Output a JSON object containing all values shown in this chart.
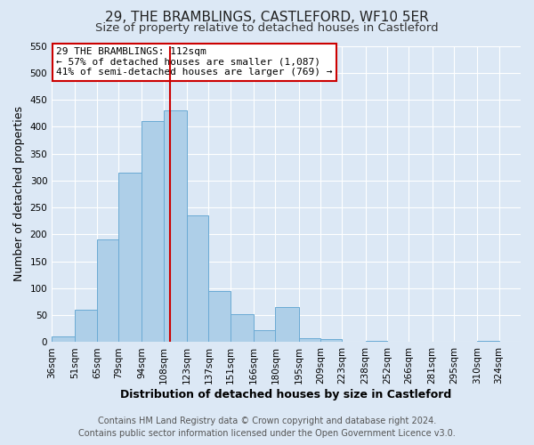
{
  "title": "29, THE BRAMBLINGS, CASTLEFORD, WF10 5ER",
  "subtitle": "Size of property relative to detached houses in Castleford",
  "xlabel": "Distribution of detached houses by size in Castleford",
  "ylabel": "Number of detached properties",
  "bin_labels": [
    "36sqm",
    "51sqm",
    "65sqm",
    "79sqm",
    "94sqm",
    "108sqm",
    "123sqm",
    "137sqm",
    "151sqm",
    "166sqm",
    "180sqm",
    "195sqm",
    "209sqm",
    "223sqm",
    "238sqm",
    "252sqm",
    "266sqm",
    "281sqm",
    "295sqm",
    "310sqm",
    "324sqm"
  ],
  "bin_edges": [
    36,
    51,
    65,
    79,
    94,
    108,
    123,
    137,
    151,
    166,
    180,
    195,
    209,
    223,
    238,
    252,
    266,
    281,
    295,
    310,
    324
  ],
  "bar_heights": [
    10,
    60,
    190,
    315,
    410,
    430,
    235,
    95,
    52,
    22,
    65,
    8,
    6,
    0,
    3,
    0,
    1,
    0,
    0,
    2
  ],
  "bar_color": "#aecfe8",
  "bar_edge_color": "#6aaad4",
  "property_size": 112,
  "red_line_x": 112,
  "annotation_title": "29 THE BRAMBLINGS: 112sqm",
  "annotation_line1": "← 57% of detached houses are smaller (1,087)",
  "annotation_line2": "41% of semi-detached houses are larger (769) →",
  "annotation_box_color": "#ffffff",
  "annotation_box_edge_color": "#cc0000",
  "red_line_color": "#cc0000",
  "ylim": [
    0,
    550
  ],
  "yticks": [
    0,
    50,
    100,
    150,
    200,
    250,
    300,
    350,
    400,
    450,
    500,
    550
  ],
  "footer1": "Contains HM Land Registry data © Crown copyright and database right 2024.",
  "footer2": "Contains public sector information licensed under the Open Government Licence v3.0.",
  "background_color": "#dce8f5",
  "plot_background_color": "#dce8f5",
  "title_fontsize": 11,
  "subtitle_fontsize": 9.5,
  "axis_label_fontsize": 9,
  "tick_fontsize": 7.5,
  "footer_fontsize": 7
}
